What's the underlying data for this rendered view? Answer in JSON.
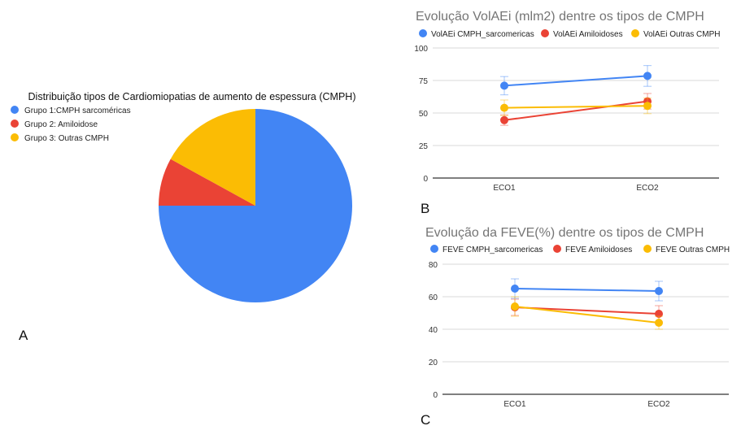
{
  "colors": {
    "blue": "#4285F4",
    "red": "#EA4335",
    "yellow": "#FBBC04",
    "axis": "#333333",
    "grid": "#d9d9d9",
    "title_grey": "#757575"
  },
  "panel_labels": {
    "a": "A",
    "b": "B",
    "c": "C"
  },
  "chart_data": [
    {
      "type": "pie",
      "title": "Distribuição tipos de Cardiomiopatias de aumento de espessura (CMPH)",
      "legend": "left",
      "labels": [
        "Grupo 1:CMPH sarcoméricas",
        "Grupo 2: Amiloidose",
        "Grupo 3: Outras CMPH"
      ],
      "values": [
        75,
        8,
        17
      ],
      "colors": [
        "#4285F4",
        "#EA4335",
        "#FBBC04"
      ]
    },
    {
      "type": "line",
      "title": "Evolução VolAEi (mlm2) dentre os tipos de CMPH",
      "categories": [
        "ECO1",
        "ECO2"
      ],
      "ylim": [
        0,
        100
      ],
      "yticks": [
        0,
        25,
        50,
        75,
        100
      ],
      "ytick_labels": [
        "0",
        "25",
        "50",
        "75",
        "100"
      ],
      "grid": true,
      "legend": "top",
      "series": [
        {
          "name": "VolAEi CMPH_sarcomericas",
          "values": [
            71,
            78.5
          ],
          "error": [
            7,
            8
          ],
          "color": "#4285F4"
        },
        {
          "name": "VolAEi Amiloidoses",
          "values": [
            44.5,
            59
          ],
          "error": [
            4,
            6
          ],
          "color": "#EA4335"
        },
        {
          "name": "VolAEi Outras CMPH",
          "values": [
            54,
            55.5
          ],
          "error": [
            6,
            6
          ],
          "color": "#FBBC04"
        }
      ]
    },
    {
      "type": "line",
      "title": "Evolução da FEVE(%) dentre os tipos de CMPH",
      "categories": [
        "ECO1",
        "ECO2"
      ],
      "ylim": [
        0,
        80
      ],
      "yticks": [
        0,
        20,
        40,
        60,
        80
      ],
      "ytick_labels": [
        "0",
        "20",
        "40",
        "60",
        "80"
      ],
      "grid": true,
      "legend": "top",
      "series": [
        {
          "name": "FEVE CMPH_sarcomericas",
          "values": [
            65,
            63.5
          ],
          "error": [
            6,
            6
          ],
          "color": "#4285F4"
        },
        {
          "name": "FEVE Amiloidoses",
          "values": [
            53.5,
            49.5
          ],
          "error": [
            5,
            5
          ],
          "color": "#EA4335"
        },
        {
          "name": "FEVE Outras CMPH",
          "values": [
            54,
            44
          ],
          "error": [
            6,
            4
          ],
          "color": "#FBBC04"
        }
      ]
    }
  ]
}
